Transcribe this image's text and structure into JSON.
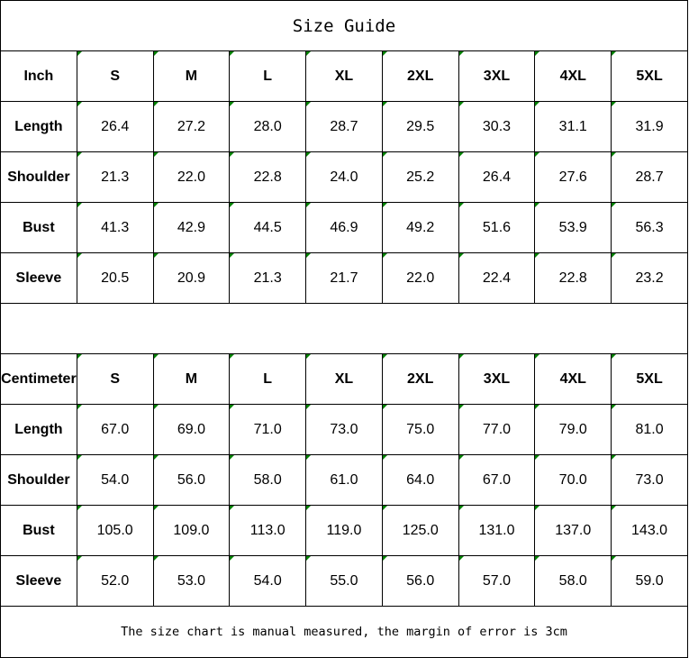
{
  "title": "Size Guide",
  "sizes": [
    "S",
    "M",
    "L",
    "XL",
    "2XL",
    "3XL",
    "4XL",
    "5XL"
  ],
  "tables": [
    {
      "unit": "Inch",
      "rows": [
        {
          "label": "Length",
          "values": [
            "26.4",
            "27.2",
            "28.0",
            "28.7",
            "29.5",
            "30.3",
            "31.1",
            "31.9"
          ]
        },
        {
          "label": "Shoulder",
          "values": [
            "21.3",
            "22.0",
            "22.8",
            "24.0",
            "25.2",
            "26.4",
            "27.6",
            "28.7"
          ]
        },
        {
          "label": "Bust",
          "values": [
            "41.3",
            "42.9",
            "44.5",
            "46.9",
            "49.2",
            "51.6",
            "53.9",
            "56.3"
          ]
        },
        {
          "label": "Sleeve",
          "values": [
            "20.5",
            "20.9",
            "21.3",
            "21.7",
            "22.0",
            "22.4",
            "22.8",
            "23.2"
          ]
        }
      ]
    },
    {
      "unit": "Centimeter",
      "rows": [
        {
          "label": "Length",
          "values": [
            "67.0",
            "69.0",
            "71.0",
            "73.0",
            "75.0",
            "77.0",
            "79.0",
            "81.0"
          ]
        },
        {
          "label": "Shoulder",
          "values": [
            "54.0",
            "56.0",
            "58.0",
            "61.0",
            "64.0",
            "67.0",
            "70.0",
            "73.0"
          ]
        },
        {
          "label": "Bust",
          "values": [
            "105.0",
            "109.0",
            "113.0",
            "119.0",
            "125.0",
            "131.0",
            "137.0",
            "143.0"
          ]
        },
        {
          "label": "Sleeve",
          "values": [
            "52.0",
            "53.0",
            "54.0",
            "55.0",
            "56.0",
            "57.0",
            "58.0",
            "59.0"
          ]
        }
      ]
    }
  ],
  "note": "The size chart is manual measured, the margin of error is 3cm",
  "colors": {
    "corner_marker": "#008000",
    "border": "#000000"
  }
}
